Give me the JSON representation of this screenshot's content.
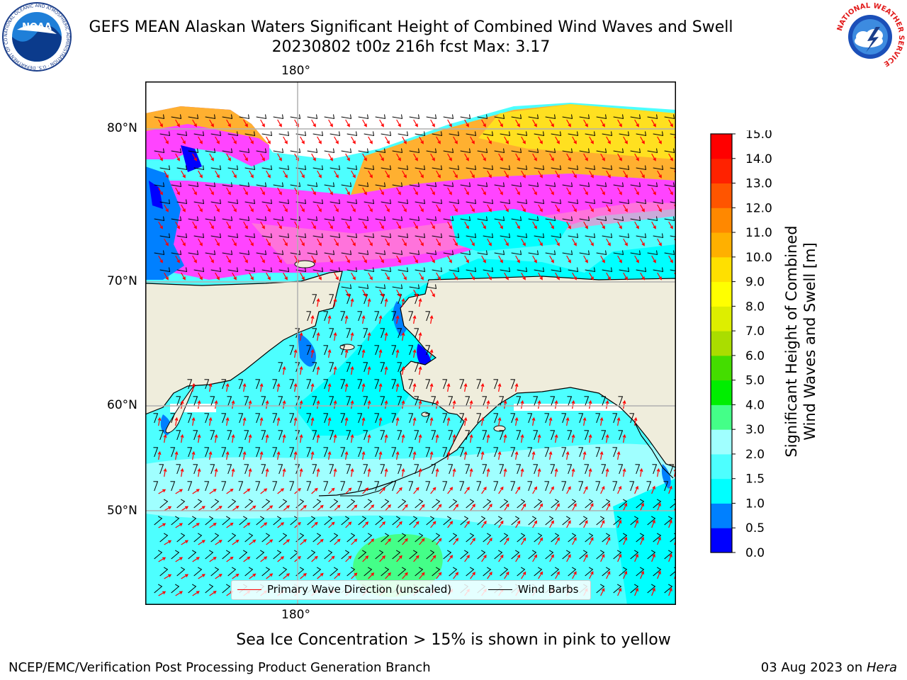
{
  "header": {
    "title": "GEFS MEAN Alaskan Waters Significant Height of Combined Wind Waves and Swell",
    "subtitle": "20230802 t00z 216h fcst   Max: 3.17"
  },
  "logos": {
    "noaa_text": "NOAA",
    "noaa_ring_text": "NATIONAL OCEANIC AND ATMOSPHERIC ADMINISTRATION · U.S. DEPARTMENT OF COMMERCE",
    "nws_ring_text": "NATIONAL WEATHER SERVICE"
  },
  "map": {
    "lon_label_top": "180°",
    "lon_label_bottom": "180°",
    "lat_labels": [
      "80°N",
      "70°N",
      "60°N",
      "50°N"
    ],
    "colors": {
      "land": "#efeddc",
      "ocean_low": "#00ffff",
      "ocean_mid": "#4dffff",
      "ocean_high": "#a0ffff",
      "coast_blue": "#0080ff",
      "deep_blue": "#0000ff",
      "green_patch": "#44ff88",
      "ice_pink": "#ff44ff",
      "ice_rose": "#ff88cc",
      "ice_orange": "#ffb030",
      "ice_yellow": "#ffe020",
      "wave_arrow": "#ff0000",
      "wind_barb": "#000000",
      "grid": "#b0b0b0"
    }
  },
  "legend": {
    "wave_label": "Primary Wave Direction (unscaled)",
    "wind_label": "Wind Barbs"
  },
  "colorbar": {
    "title_line1": "Significant Height of Combined",
    "title_line2": "Wind Waves and Swell [m]",
    "ticks": [
      "0.0",
      "0.5",
      "1.0",
      "1.5",
      "2.0",
      "3.0",
      "4.0",
      "5.0",
      "6.0",
      "7.0",
      "8.0",
      "9.0",
      "10.0",
      "11.0",
      "12.0",
      "13.0",
      "14.0",
      "15.0"
    ],
    "colors": [
      "#0000ff",
      "#0080ff",
      "#00ffff",
      "#4dffff",
      "#a0ffff",
      "#44ff88",
      "#00ee00",
      "#44dd00",
      "#aadd00",
      "#ddee00",
      "#ffff00",
      "#ffe000",
      "#ffb000",
      "#ff8800",
      "#ff5500",
      "#ff2200",
      "#ff0000"
    ]
  },
  "note": "Sea Ice Concentration > 15% is shown in pink to yellow",
  "footer": {
    "left": "NCEP/EMC/Verification Post Processing Product Generation Branch",
    "right_date": "03 Aug 2023 on ",
    "right_machine": "Hera"
  }
}
